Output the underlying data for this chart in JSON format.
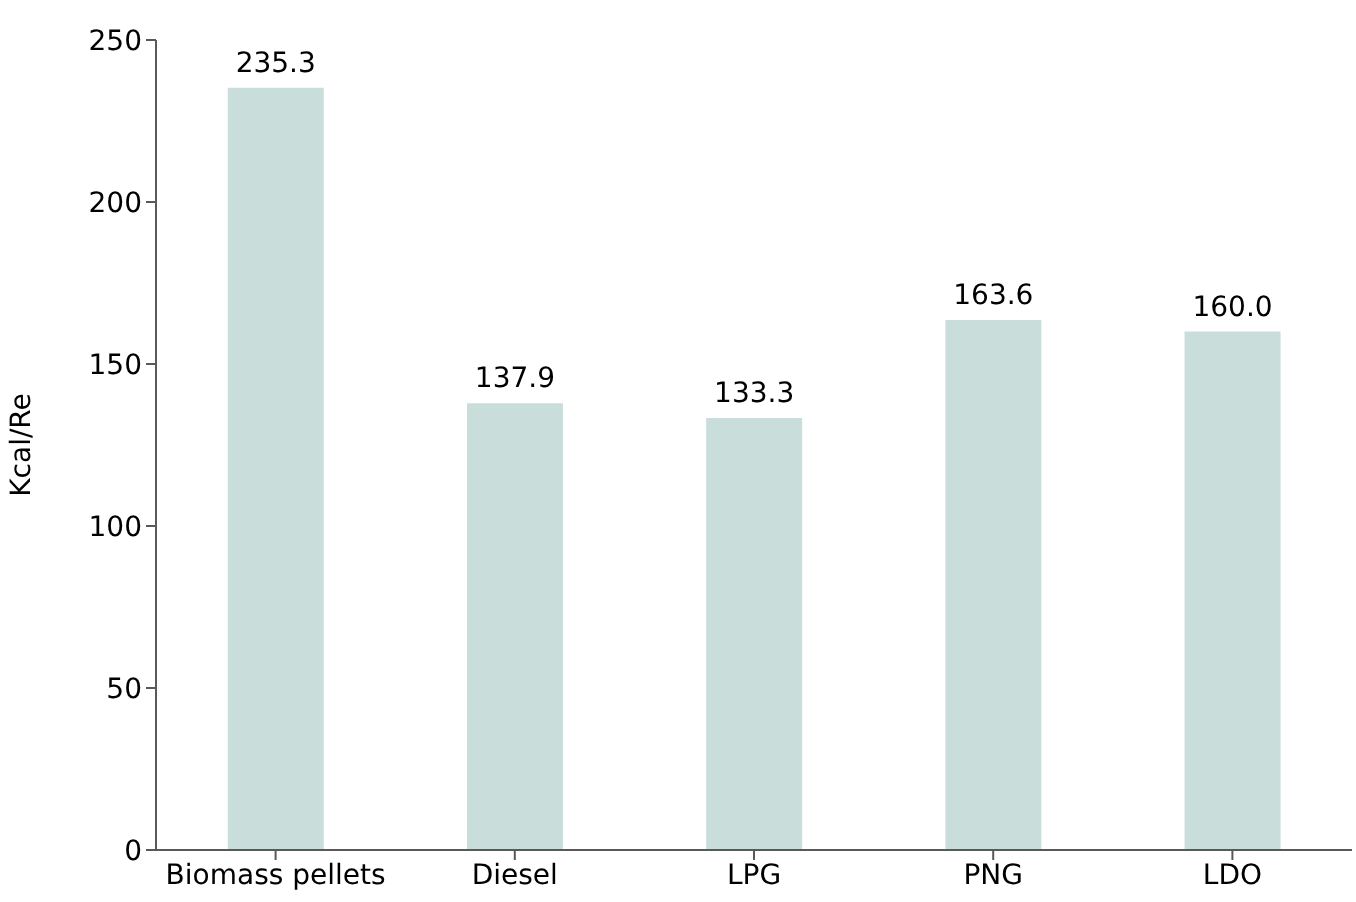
{
  "chart_data": {
    "type": "bar",
    "ylabel": "Kcal/Re",
    "categories": [
      "Biomass pellets",
      "Diesel",
      "LPG",
      "PNG",
      "LDO"
    ],
    "values": [
      235.3,
      137.9,
      133.3,
      163.6,
      160.0
    ],
    "value_labels": [
      "235.3",
      "137.9",
      "133.3",
      "163.6",
      "160.0"
    ],
    "color": "#c9dedb",
    "ylim": [
      0,
      250
    ],
    "yticks": [
      0,
      50,
      100,
      150,
      200,
      250
    ],
    "grid": false,
    "legend": false
  }
}
